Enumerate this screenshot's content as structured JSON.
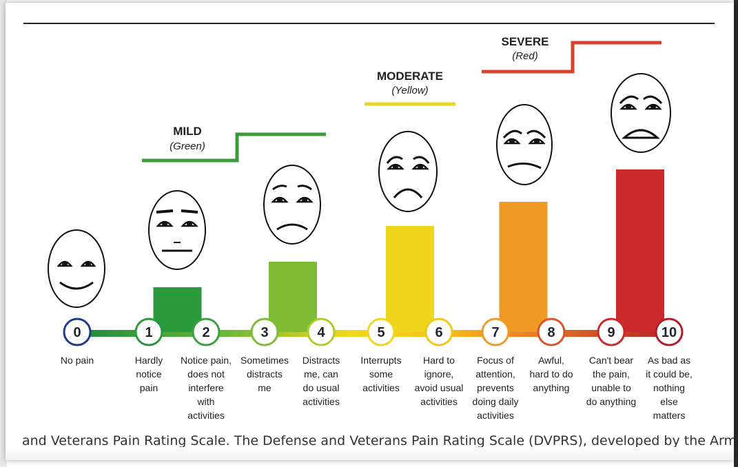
{
  "bands": [
    {
      "title": "MILD",
      "subtitle": "(Green)",
      "color": "#3c9c3c"
    },
    {
      "title": "MODERATE",
      "subtitle": "(Yellow)",
      "color": "#e8d62a"
    },
    {
      "title": "SEVERE",
      "subtitle": "(Red)",
      "color": "#d8412d"
    }
  ],
  "levels": [
    {
      "number": "0",
      "lines": [
        "No pain"
      ],
      "color": "#1f3c8c",
      "bar": 0
    },
    {
      "number": "1",
      "lines": [
        "Hardly",
        "notice",
        "pain"
      ],
      "color": "#2b9a3c",
      "bar": 1
    },
    {
      "number": "2",
      "lines": [
        "Notice pain,",
        "does not",
        "interfere",
        "with",
        "activities"
      ],
      "color": "#3aa040",
      "bar": 2
    },
    {
      "number": "3",
      "lines": [
        "Sometimes",
        "distracts",
        "me"
      ],
      "color": "#7dbc34",
      "bar": 3
    },
    {
      "number": "4",
      "lines": [
        "Distracts",
        "me, can",
        "do usual",
        "activities"
      ],
      "color": "#b2cc2a",
      "bar": 4
    },
    {
      "number": "5",
      "lines": [
        "Interrupts",
        "some",
        "activities"
      ],
      "color": "#efd51c",
      "bar": 5
    },
    {
      "number": "6",
      "lines": [
        "Hard to",
        "ignore,",
        "avoid usual",
        "activities"
      ],
      "color": "#f2c61a",
      "bar": 6
    },
    {
      "number": "7",
      "lines": [
        "Focus of",
        "attention,",
        "prevents",
        "doing daily",
        "activities"
      ],
      "color": "#ee9a24",
      "bar": 7
    },
    {
      "number": "8",
      "lines": [
        "Awful,",
        "hard to do",
        "anything"
      ],
      "color": "#e0502a",
      "bar": 8
    },
    {
      "number": "9",
      "lines": [
        "Can't bear",
        "the pain,",
        "unable to",
        "do anything"
      ],
      "color": "#cc2a2a",
      "bar": 9
    },
    {
      "number": "10",
      "lines": [
        "As bad as",
        "it could be,",
        "nothing",
        "else",
        "matters"
      ],
      "color": "#b01e2a",
      "bar": 10
    }
  ],
  "caption": "and Veterans Pain Rating Scale. The Defense and Veterans Pain Rating Scale (DVPRS), developed by the Army Surg"
}
